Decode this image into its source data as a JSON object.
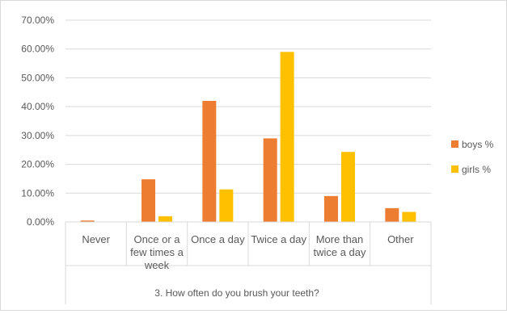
{
  "chart_data": {
    "type": "bar",
    "xlabel": "3. How often do you brush your teeth?",
    "categories": [
      "Never",
      "Once or a few times a week",
      "Once a day",
      "Twice a day",
      "More than twice a day",
      "Other"
    ],
    "category_lines": [
      [
        "Never"
      ],
      [
        "Once or a",
        "few times a",
        "week"
      ],
      [
        "Once a day"
      ],
      [
        "Twice a day"
      ],
      [
        "More than",
        "twice a day"
      ],
      [
        "Other"
      ]
    ],
    "series": [
      {
        "name": "boys %",
        "color": "#ED7D31",
        "values": [
          0.5,
          14.8,
          42.0,
          29.0,
          9.0,
          4.8
        ]
      },
      {
        "name": "girls %",
        "color": "#FFC000",
        "values": [
          0.0,
          2.0,
          11.3,
          59.0,
          24.3,
          3.5
        ]
      }
    ],
    "yticks": [
      "0.00%",
      "10.00%",
      "20.00%",
      "30.00%",
      "40.00%",
      "50.00%",
      "60.00%",
      "70.00%"
    ],
    "ylim": [
      0,
      70
    ],
    "grid": true,
    "legend_position": "right"
  }
}
